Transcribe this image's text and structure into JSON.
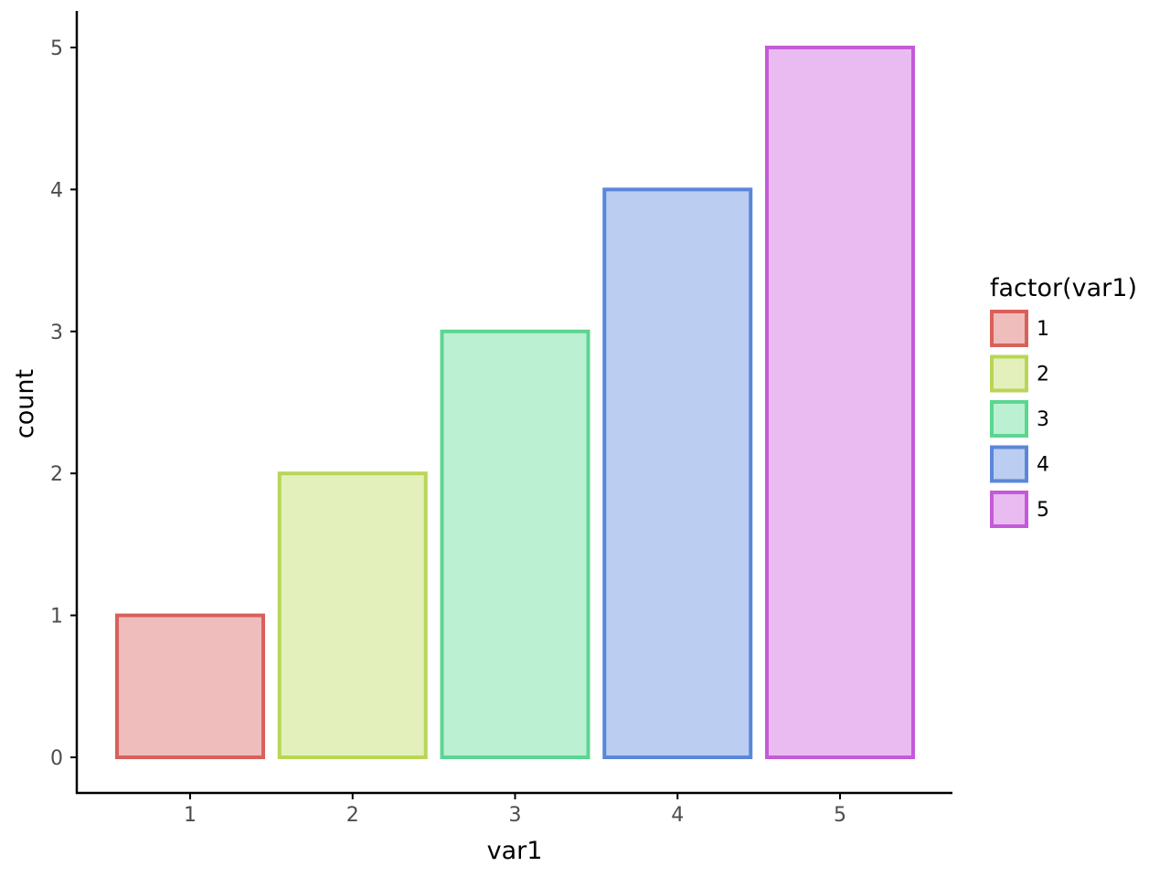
{
  "chart_data": {
    "type": "bar",
    "categories": [
      "1",
      "2",
      "3",
      "4",
      "5"
    ],
    "values": [
      1,
      2,
      3,
      4,
      5
    ],
    "xlabel": "var1",
    "ylabel": "count",
    "ylim": [
      0,
      5
    ],
    "yticks": [
      "0",
      "1",
      "2",
      "3",
      "4",
      "5"
    ],
    "grid": false,
    "legend": {
      "title": "factor(var1)",
      "placement": "right",
      "entries": [
        "1",
        "2",
        "3",
        "4",
        "5"
      ]
    },
    "colors": {
      "stroke": [
        "#d9605a",
        "#b8d656",
        "#5bd690",
        "#5a87d9",
        "#c45ad9"
      ],
      "fill": [
        "#efbdbb",
        "#e3f0bb",
        "#bcf0d3",
        "#bbcdf0",
        "#e9bbf0"
      ]
    }
  }
}
